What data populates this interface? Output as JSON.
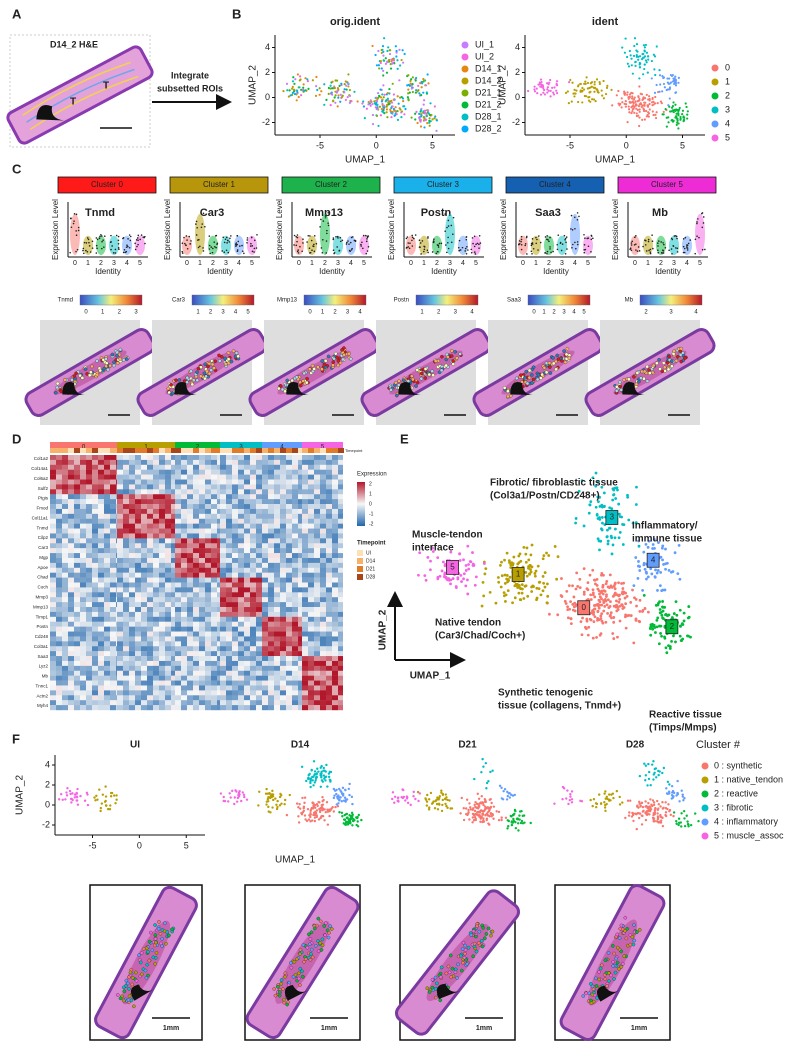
{
  "panelA": {
    "label": "A",
    "title": "D14_2 H&E",
    "marks": [
      "T",
      "T"
    ],
    "arrow": [
      "Integrate",
      "subsetted ROIs"
    ]
  },
  "panelB": {
    "label": "B",
    "xlabel": "UMAP_1",
    "ylabel": "UMAP_2",
    "xticks": [
      -5,
      0,
      5
    ],
    "yticks": [
      4,
      2,
      0,
      -2
    ],
    "plots": [
      {
        "title": "orig.ident",
        "legend": [
          {
            "name": "UI_1",
            "color": "#c77cff"
          },
          {
            "name": "UI_2",
            "color": "#f564e3"
          },
          {
            "name": "D14_1",
            "color": "#e68613"
          },
          {
            "name": "D14_2",
            "color": "#b79f00"
          },
          {
            "name": "D21_1",
            "color": "#7cae00"
          },
          {
            "name": "D21_2",
            "color": "#00ba38"
          },
          {
            "name": "D28_1",
            "color": "#00bfc4"
          },
          {
            "name": "D28_2",
            "color": "#00a9ff"
          }
        ]
      },
      {
        "title": "ident",
        "legend": [
          {
            "name": "0",
            "color": "#f8766d"
          },
          {
            "name": "1",
            "color": "#b79f00"
          },
          {
            "name": "2",
            "color": "#00ba38"
          },
          {
            "name": "3",
            "color": "#00bfc4"
          },
          {
            "name": "4",
            "color": "#619cff"
          },
          {
            "name": "5",
            "color": "#f564e3"
          }
        ]
      }
    ]
  },
  "panelC": {
    "label": "C",
    "ylabel": "Expression Level",
    "xlabel": "Identity",
    "identities": [
      0,
      1,
      2,
      3,
      4,
      5
    ],
    "clusters": [
      {
        "header": "Cluster 0",
        "color": "#ff1a1a",
        "gene": "Tnmd",
        "scale": [
          0,
          1,
          2,
          3
        ]
      },
      {
        "header": "Cluster 1",
        "color": "#b8960c",
        "gene": "Car3",
        "scale": [
          1,
          2,
          3,
          4,
          5
        ]
      },
      {
        "header": "Cluster 2",
        "color": "#1db24b",
        "gene": "Mmp13",
        "scale": [
          0,
          1,
          2,
          3,
          4
        ]
      },
      {
        "header": "Cluster 3",
        "color": "#1ab0ea",
        "gene": "Postn",
        "scale": [
          1,
          2,
          3,
          4
        ]
      },
      {
        "header": "Cluster 4",
        "color": "#1560b0",
        "gene": "Saa3",
        "scale": [
          0,
          1,
          2,
          3,
          4,
          5
        ]
      },
      {
        "header": "Cluster 5",
        "color": "#ee2cd6",
        "gene": "Mb",
        "scale": [
          2,
          3,
          4
        ]
      }
    ]
  },
  "panelD": {
    "label": "D",
    "columns": [
      0,
      1,
      2,
      3,
      4,
      5
    ],
    "bar_label": "Timepoint",
    "genes": [
      "Col1a2",
      "Col14a1",
      "Col6a2",
      "Sulf2",
      "Ptgis",
      "Fmod",
      "Col11a1",
      "Tnmd",
      "Cilp2",
      "Car3",
      "Mgp",
      "Apoe",
      "Chad",
      "Coch",
      "Mmp3",
      "Mmp13",
      "Timp1",
      "Postn",
      "Cd248",
      "Col3a1",
      "Saa3",
      "Lyz2",
      "Mb",
      "Tnnc1",
      "Actn2",
      "Myh4"
    ],
    "legend_title": "Expression",
    "legend_ticks": [
      2,
      1,
      0,
      -1,
      -2
    ],
    "timepoint_title": "Timepoint",
    "timepoints": [
      {
        "name": "UI",
        "color": "#fde0b8"
      },
      {
        "name": "D14",
        "color": "#f6b26b"
      },
      {
        "name": "D21",
        "color": "#e07b2a"
      },
      {
        "name": "D28",
        "color": "#a8461a"
      }
    ]
  },
  "panelE": {
    "label": "E",
    "xlabel": "UMAP_1",
    "ylabel": "UMAP_2",
    "clusters": [
      0,
      1,
      2,
      3,
      4,
      5
    ],
    "annotations": [
      {
        "lines": [
          "Fibrotic/ fibroblastic tissue",
          "(Col3a1/Postn/CD248+)"
        ],
        "color": "#109a96"
      },
      {
        "lines": [
          "Inflammatory/",
          "immune tissue"
        ],
        "color": "#1f5fbf"
      },
      {
        "lines": [
          "Muscle-tendon",
          "interface"
        ],
        "color": "#e020c8"
      },
      {
        "lines": [
          "Native tendon",
          "(Car3/Chad/Coch+)"
        ],
        "color": "#b08a00"
      },
      {
        "lines": [
          "Synthetic tenogenic",
          "tissue (collagens, Tnmd+)"
        ],
        "color": "#e01010"
      },
      {
        "lines": [
          "Reactive tissue",
          "(Timps/Mmps)"
        ],
        "color": "#1aa030"
      }
    ]
  },
  "panelF": {
    "label": "F",
    "plots": [
      "UI",
      "D14",
      "D21",
      "D28"
    ],
    "xlabel": "UMAP_1",
    "ylabel": "UMAP_2",
    "xticks": [
      -5,
      0,
      5
    ],
    "yticks": [
      4,
      2,
      0,
      -2
    ],
    "legend_title": "Cluster #",
    "legend": [
      "0 : synthetic",
      "1 : native_tendon",
      "2 : reactive",
      "3 : fibrotic",
      "4 : inflammatory",
      "5 : muscle_assoc"
    ],
    "scalebar": "1mm"
  }
}
